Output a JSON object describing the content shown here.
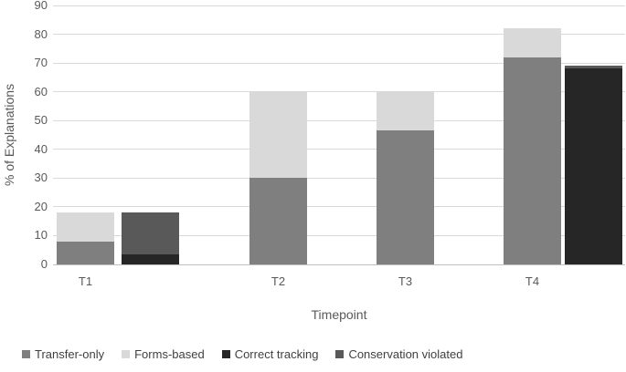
{
  "chart_data": {
    "type": "bar",
    "subtype": "clustered-stacked",
    "title": "",
    "xlabel": "Timepoint",
    "ylabel": "% of Explanations",
    "categories": [
      "T1",
      "T2",
      "T3",
      "T4"
    ],
    "ylim": [
      0,
      90
    ],
    "yticks": [
      0,
      10,
      20,
      30,
      40,
      50,
      60,
      70,
      80,
      90
    ],
    "grid": true,
    "legend_position": "bottom",
    "stacks": [
      {
        "name": "explanation-type-stack",
        "series": [
          {
            "name": "Transfer-only",
            "color": "#7f7f7f",
            "values": [
              8,
              30,
              46.7,
              72
            ]
          },
          {
            "name": "Forms-based",
            "color": "#d9d9d9",
            "values": [
              10,
              30,
              13.3,
              10
            ]
          }
        ]
      },
      {
        "name": "tracking-stack",
        "series": [
          {
            "name": "Correct tracking",
            "color": "#262626",
            "values": [
              3.5,
              0,
              0,
              68
            ]
          },
          {
            "name": "Conservation violated",
            "color": "#595959",
            "values": [
              14.5,
              0,
              0,
              1
            ]
          }
        ]
      }
    ],
    "legend": [
      {
        "label": "Transfer-only",
        "color": "#7f7f7f"
      },
      {
        "label": "Forms-based",
        "color": "#d9d9d9"
      },
      {
        "label": "Correct tracking",
        "color": "#262626"
      },
      {
        "label": "Conservation violated",
        "color": "#595959"
      }
    ]
  },
  "colors": {
    "gridline": "#d9d9d9",
    "axis_line": "#bfbfbf",
    "axis_text": "#595959",
    "legend_text": "#404040"
  }
}
